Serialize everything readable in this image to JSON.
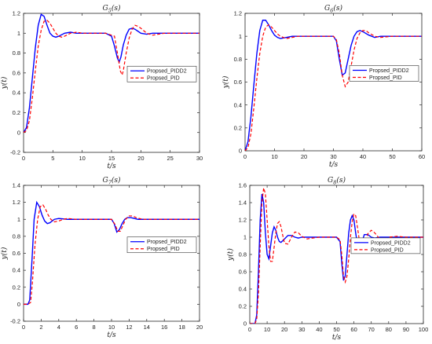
{
  "chart_data": [
    {
      "type": "line",
      "title": "G5(s)",
      "xlabel": "t/s",
      "ylabel": "y(t)",
      "xlim": [
        0,
        30
      ],
      "ylim": [
        -0.2,
        1.2
      ],
      "xticks": [
        0,
        5,
        10,
        15,
        20,
        25,
        30
      ],
      "yticks": [
        -0.2,
        0,
        0.2,
        0.4,
        0.6,
        0.8,
        1,
        1.2
      ],
      "legend_position": "right-middle",
      "series": [
        {
          "name": "Propsed_PIDD2",
          "color": "#0000ff",
          "dash": "solid",
          "x": [
            0,
            0.5,
            1,
            1.5,
            2,
            2.5,
            3,
            3.5,
            4,
            4.5,
            5,
            5.5,
            6,
            7,
            8,
            9,
            10,
            12,
            14,
            15,
            15.5,
            16,
            16.3,
            16.6,
            17,
            17.5,
            18,
            18.5,
            19,
            19.5,
            20,
            21,
            22,
            24,
            26,
            30
          ],
          "y": [
            0,
            0.05,
            0.25,
            0.55,
            0.85,
            1.08,
            1.19,
            1.17,
            1.08,
            1.0,
            0.97,
            0.96,
            0.97,
            1.0,
            1.01,
            1.0,
            1.0,
            1.0,
            1.0,
            0.97,
            0.87,
            0.75,
            0.71,
            0.76,
            0.88,
            0.98,
            1.04,
            1.05,
            1.04,
            1.02,
            1.0,
            0.99,
            1.0,
            1.0,
            1.0,
            1.0
          ]
        },
        {
          "name": "Propsed_PID",
          "color": "#ff0000",
          "dash": "dashed",
          "x": [
            0,
            0.5,
            1,
            1.5,
            2,
            2.5,
            3,
            3.5,
            4,
            4.5,
            5,
            5.5,
            6,
            6.5,
            7,
            8,
            9,
            10,
            12,
            14,
            15.5,
            16,
            16.5,
            16.8,
            17,
            17.5,
            18,
            18.5,
            19,
            19.5,
            20,
            21,
            22,
            24,
            26,
            30
          ],
          "y": [
            0,
            0.02,
            0.12,
            0.35,
            0.62,
            0.87,
            1.03,
            1.12,
            1.13,
            1.1,
            1.05,
            1.0,
            0.97,
            0.96,
            0.97,
            1.0,
            1.01,
            1.0,
            1.0,
            1.0,
            0.97,
            0.8,
            0.62,
            0.58,
            0.62,
            0.8,
            0.95,
            1.04,
            1.08,
            1.07,
            1.05,
            1.0,
            0.98,
            1.0,
            1.0,
            1.0
          ]
        }
      ]
    },
    {
      "type": "line",
      "title": "G6(s)",
      "xlabel": "t/s",
      "ylabel": "y(t)",
      "xlim": [
        0,
        60
      ],
      "ylim": [
        0,
        1.2
      ],
      "xticks": [
        0,
        10,
        20,
        30,
        40,
        50,
        60
      ],
      "yticks": [
        0,
        0.2,
        0.4,
        0.6,
        0.8,
        1,
        1.2
      ],
      "legend_position": "right-middle",
      "series": [
        {
          "name": "Propsed_PIDD2",
          "color": "#0000ff",
          "dash": "solid",
          "x": [
            0,
            1,
            2,
            3,
            4,
            5,
            6,
            7,
            8,
            9,
            10,
            11,
            12,
            14,
            16,
            18,
            20,
            25,
            30,
            31,
            32,
            33,
            34,
            35,
            36,
            37,
            38,
            39,
            40,
            42,
            44,
            46,
            50,
            60
          ],
          "y": [
            0,
            0.08,
            0.3,
            0.58,
            0.85,
            1.05,
            1.14,
            1.14,
            1.1,
            1.05,
            1.01,
            0.99,
            0.98,
            0.99,
            1.0,
            1.0,
            1.0,
            1.0,
            1.0,
            0.96,
            0.8,
            0.66,
            0.68,
            0.8,
            0.92,
            1.0,
            1.04,
            1.05,
            1.04,
            1.01,
            0.99,
            1.0,
            1.0,
            1.0
          ]
        },
        {
          "name": "Propsed_PID",
          "color": "#ff0000",
          "dash": "dashed",
          "x": [
            0,
            1,
            2,
            3,
            4,
            5,
            6,
            7,
            8,
            9,
            10,
            11,
            12,
            13,
            14,
            16,
            18,
            20,
            25,
            30,
            31,
            32,
            33,
            34,
            35,
            36,
            37,
            38,
            39,
            40,
            41,
            42,
            44,
            46,
            50,
            60
          ],
          "y": [
            0,
            0.03,
            0.15,
            0.38,
            0.63,
            0.85,
            1.0,
            1.08,
            1.1,
            1.08,
            1.05,
            1.02,
            1.0,
            0.99,
            0.98,
            0.99,
            1.0,
            1.0,
            1.0,
            1.0,
            0.97,
            0.85,
            0.66,
            0.56,
            0.6,
            0.74,
            0.88,
            0.98,
            1.03,
            1.05,
            1.05,
            1.03,
            1.0,
            0.99,
            1.0,
            1.0
          ]
        }
      ]
    },
    {
      "type": "line",
      "title": "G7(s)",
      "xlabel": "t/s",
      "ylabel": "y(t)",
      "xlim": [
        0,
        20
      ],
      "ylim": [
        -0.2,
        1.4
      ],
      "xticks": [
        0,
        2,
        4,
        6,
        8,
        10,
        12,
        14,
        16,
        18,
        20
      ],
      "yticks": [
        -0.2,
        0,
        0.2,
        0.4,
        0.6,
        0.8,
        1,
        1.2,
        1.4
      ],
      "legend_position": "right-middle",
      "series": [
        {
          "name": "Propsed_PIDD2",
          "color": "#0000ff",
          "dash": "solid",
          "x": [
            0,
            0.5,
            0.7,
            1,
            1.2,
            1.5,
            1.8,
            2.1,
            2.4,
            2.7,
            3,
            3.5,
            4,
            5,
            6,
            8,
            10,
            10.3,
            10.6,
            10.9,
            11.2,
            11.5,
            11.8,
            12.2,
            12.6,
            13,
            14,
            16,
            20
          ],
          "y": [
            0,
            0,
            0.05,
            0.6,
            1.0,
            1.2,
            1.15,
            1.05,
            0.98,
            0.95,
            0.96,
            1.0,
            1.01,
            1.0,
            1.0,
            1.0,
            1.0,
            0.95,
            0.85,
            0.88,
            0.95,
            1.0,
            1.02,
            1.02,
            1.01,
            1.0,
            1.0,
            1.0,
            1.0
          ]
        },
        {
          "name": "Propsed_PID",
          "color": "#ff0000",
          "dash": "dashed",
          "x": [
            0,
            0.5,
            0.8,
            1,
            1.3,
            1.6,
            1.9,
            2.2,
            2.5,
            2.8,
            3.1,
            3.5,
            4,
            4.5,
            5,
            6,
            8,
            10,
            10.4,
            10.7,
            11,
            11.3,
            11.6,
            12,
            12.4,
            12.8,
            13.5,
            14.5,
            16,
            20
          ],
          "y": [
            0,
            0,
            0.02,
            0.25,
            0.7,
            1.0,
            1.15,
            1.17,
            1.12,
            1.05,
            1.0,
            0.97,
            0.98,
            1.0,
            1.01,
            1.0,
            1.0,
            1.0,
            0.94,
            0.86,
            0.86,
            0.93,
            1.0,
            1.04,
            1.04,
            1.02,
            1.0,
            1.0,
            1.0,
            1.0
          ]
        }
      ]
    },
    {
      "type": "line",
      "title": "G8(s)",
      "xlabel": "t/s",
      "ylabel": "y(t)",
      "xlim": [
        0,
        100
      ],
      "ylim": [
        0,
        1.6
      ],
      "xticks": [
        0,
        10,
        20,
        30,
        40,
        50,
        60,
        70,
        80,
        90,
        100
      ],
      "yticks": [
        0,
        0.2,
        0.4,
        0.6,
        0.8,
        1,
        1.2,
        1.4,
        1.6
      ],
      "legend_position": "right-middle",
      "series": [
        {
          "name": "Propsed_PIDD2",
          "color": "#0000ff",
          "dash": "solid",
          "x": [
            0,
            3,
            4,
            5,
            6,
            7,
            8,
            9,
            10,
            11,
            12,
            13,
            14,
            15,
            16,
            17,
            18,
            20,
            22,
            24,
            26,
            28,
            30,
            35,
            40,
            50,
            52,
            53,
            54,
            55,
            56,
            57,
            58,
            59,
            60,
            61,
            62,
            63,
            64,
            65,
            66,
            68,
            70,
            72,
            75,
            80,
            90,
            100
          ],
          "y": [
            0,
            0,
            0.1,
            0.6,
            1.2,
            1.5,
            1.4,
            1.05,
            0.8,
            0.75,
            0.9,
            1.05,
            1.12,
            1.08,
            1.0,
            0.95,
            0.94,
            0.98,
            1.02,
            1.02,
            1.0,
            0.99,
            1.0,
            1.0,
            1.0,
            1.0,
            0.95,
            0.7,
            0.5,
            0.55,
            0.8,
            1.05,
            1.2,
            1.25,
            1.2,
            1.05,
            0.92,
            0.87,
            0.9,
            0.97,
            1.03,
            1.03,
            1.0,
            0.99,
            1.0,
            1.0,
            1.0,
            1.0
          ]
        },
        {
          "name": "Propsed_PID",
          "color": "#ff0000",
          "dash": "dashed",
          "x": [
            0,
            3,
            4,
            5,
            6,
            7,
            8,
            9,
            10,
            11,
            12,
            13,
            14,
            15,
            16,
            17,
            18,
            19,
            20,
            22,
            24,
            26,
            28,
            30,
            33,
            36,
            40,
            50,
            52,
            53,
            54,
            55,
            56,
            57,
            58,
            59,
            60,
            61,
            62,
            63,
            64,
            65,
            66,
            67,
            68,
            70,
            72,
            74,
            76,
            78,
            80,
            85,
            90,
            100
          ],
          "y": [
            0,
            0,
            0.05,
            0.35,
            0.9,
            1.4,
            1.57,
            1.5,
            1.2,
            0.9,
            0.72,
            0.72,
            0.88,
            1.05,
            1.16,
            1.18,
            1.12,
            1.02,
            0.93,
            0.92,
            1.0,
            1.06,
            1.05,
            1.01,
            0.98,
            0.99,
            1.0,
            1.0,
            0.97,
            0.8,
            0.55,
            0.48,
            0.55,
            0.75,
            1.0,
            1.18,
            1.27,
            1.25,
            1.12,
            0.98,
            0.86,
            0.82,
            0.86,
            0.95,
            1.04,
            1.08,
            1.05,
            1.0,
            0.96,
            0.97,
            1.0,
            1.01,
            1.0,
            1.0
          ]
        }
      ]
    }
  ]
}
